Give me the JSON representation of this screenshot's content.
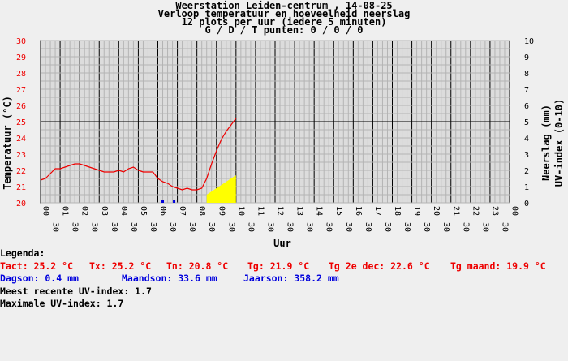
{
  "header": {
    "line1": "Weerstation Leiden-centrum , 14-08-25",
    "line2": "Verloop temperatuur en hoeveelheid neerslag",
    "line3": "12 plots per uur (iedere 5 minuten)",
    "line4": "G / D / T punten: 0 / 0 / 0"
  },
  "colors": {
    "temperature": "#ee0000",
    "rain": "#0000dd",
    "uv": "#ffff00",
    "plot_bg": "#dcdcdc",
    "grid_fine": "#b4b4b4",
    "grid_major": "#000000"
  },
  "chart_data": {
    "type": "line",
    "xlabel": "Uur",
    "ylabel_left": "Temperatuur (°C)",
    "ylabel_right_1": "Neerslag (mm)",
    "ylabel_right_2": "UV-index (0-10)",
    "y_left_range": [
      20,
      30
    ],
    "y_right_range": [
      0,
      10
    ],
    "y_left_ticks": [
      "20",
      "21",
      "22",
      "23",
      "24",
      "25",
      "26",
      "27",
      "28",
      "29",
      "30"
    ],
    "y_right_ticks": [
      "0",
      "1",
      "2",
      "3",
      "4",
      "5",
      "6",
      "7",
      "8",
      "9",
      "10"
    ],
    "x_range_hours": [
      0,
      24
    ],
    "x_hour_labels": [
      "00",
      "01",
      "02",
      "03",
      "04",
      "05",
      "06",
      "07",
      "08",
      "09",
      "10",
      "11",
      "12",
      "13",
      "14",
      "15",
      "16",
      "17",
      "18",
      "19",
      "20",
      "21",
      "22",
      "23",
      "00"
    ],
    "x_half_label": "30",
    "grid": true,
    "series": [
      {
        "kind": "temperature_line",
        "x": [
          0,
          0.25,
          0.5,
          0.75,
          1.0,
          1.25,
          1.5,
          1.75,
          2.0,
          2.25,
          2.5,
          2.75,
          3.0,
          3.25,
          3.5,
          3.75,
          4.0,
          4.25,
          4.5,
          4.75,
          5.0,
          5.25,
          5.5,
          5.75,
          6.0,
          6.25,
          6.5,
          6.75,
          7.0,
          7.25,
          7.5,
          7.75,
          8.0,
          8.25,
          8.5,
          8.75,
          9.0,
          9.25,
          9.5,
          9.75,
          10.0
        ],
        "y": [
          21.4,
          21.5,
          21.8,
          22.1,
          22.1,
          22.2,
          22.3,
          22.4,
          22.4,
          22.3,
          22.2,
          22.1,
          22.0,
          21.9,
          21.9,
          21.9,
          22.0,
          21.9,
          22.1,
          22.2,
          22.0,
          21.9,
          21.9,
          21.9,
          21.5,
          21.3,
          21.2,
          21.0,
          20.9,
          20.8,
          20.9,
          20.8,
          20.8,
          20.9,
          21.5,
          22.4,
          23.2,
          23.9,
          24.4,
          24.8,
          25.2
        ]
      },
      {
        "kind": "rain_bars",
        "x": [
          6.25,
          6.833
        ],
        "y": [
          0.2,
          0.2
        ]
      },
      {
        "kind": "uv_area",
        "x": [
          8.5,
          8.75,
          9.0,
          9.25,
          9.5,
          9.75,
          10.0
        ],
        "y": [
          0.5,
          0.7,
          0.9,
          1.1,
          1.3,
          1.5,
          1.7
        ]
      }
    ]
  },
  "legend": {
    "heading": "Legenda:",
    "tact": "Tact: 25.2 °C",
    "tx": "Tx: 25.2 °C",
    "tn": "Tn: 20.8 °C",
    "tg": "Tg: 21.9 °C",
    "tg2": "Tg 2e dec: 22.6 °C",
    "tgm": "Tg maand: 19.9 °C",
    "dagson": "Dagson: 0.4 mm",
    "maandson": "Maandson: 33.6 mm",
    "jaarson": "Jaarson: 358.2 mm",
    "uv_recent": "Meest recente UV-index: 1.7",
    "uv_max": "Maximale UV-index: 1.7"
  }
}
